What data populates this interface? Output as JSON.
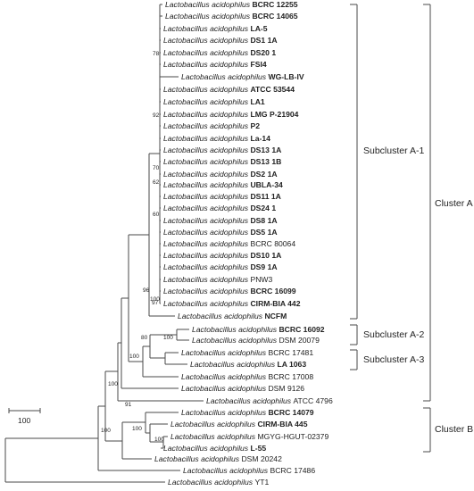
{
  "genus": "Lactobacillus",
  "species": "acidophilus",
  "strains": [
    {
      "strain": "BCRC 12255",
      "bold": true
    },
    {
      "strain": "BCRC 14065",
      "bold": true
    },
    {
      "strain": "LA-5",
      "bold": true
    },
    {
      "strain": "DS1 1A",
      "bold": true
    },
    {
      "strain": "DS20 1",
      "bold": true
    },
    {
      "strain": "FSI4",
      "bold": true
    },
    {
      "strain": "WG-LB-IV",
      "bold": true
    },
    {
      "strain": "ATCC 53544",
      "bold": true
    },
    {
      "strain": "LA1",
      "bold": true
    },
    {
      "strain": "LMG P-21904",
      "bold": true
    },
    {
      "strain": "P2",
      "bold": true
    },
    {
      "strain": "La-14",
      "bold": true
    },
    {
      "strain": "DS13 1A",
      "bold": true
    },
    {
      "strain": "DS13 1B",
      "bold": true
    },
    {
      "strain": "DS2 1A",
      "bold": true
    },
    {
      "strain": "UBLA-34",
      "bold": true
    },
    {
      "strain": "DS11 1A",
      "bold": true
    },
    {
      "strain": "DS24 1",
      "bold": true
    },
    {
      "strain": "DS8 1A",
      "bold": true
    },
    {
      "strain": "DS5 1A",
      "bold": true
    },
    {
      "strain": "BCRC 80064",
      "bold": false
    },
    {
      "strain": "DS10 1A",
      "bold": true
    },
    {
      "strain": "DS9 1A",
      "bold": true
    },
    {
      "strain": "PNW3",
      "bold": false
    },
    {
      "strain": "BCRC 16099",
      "bold": true
    },
    {
      "strain": "CIRM-BIA 442",
      "bold": true
    },
    {
      "strain": "NCFM",
      "bold": true
    },
    {
      "strain": "BCRC 16092",
      "bold": true
    },
    {
      "strain": "DSM 20079",
      "bold": false
    },
    {
      "strain": "BCRC 17481",
      "bold": false
    },
    {
      "strain": "LA 1063",
      "bold": true
    },
    {
      "strain": "BCRC 17008",
      "bold": false
    },
    {
      "strain": "DSM 9126",
      "bold": false
    },
    {
      "strain": "ATCC 4796",
      "bold": false
    },
    {
      "strain": "BCRC 14079",
      "bold": true
    },
    {
      "strain": "CIRM-BIA 445",
      "bold": true
    },
    {
      "strain": "MGYG-HGUT-02379",
      "bold": false
    },
    {
      "strain": "L-55",
      "bold": true
    },
    {
      "strain": "DSM 20242",
      "bold": false
    },
    {
      "strain": "BCRC 17486",
      "bold": false
    },
    {
      "strain": "YT1",
      "bold": false
    }
  ],
  "bootstrap": [
    "78",
    "92",
    "70",
    "62",
    "60",
    "100",
    "97",
    "96",
    "100",
    "80",
    "100",
    "100",
    "91",
    "100",
    "100",
    "100"
  ],
  "clusters": {
    "subcluster_a1": "Subcluster A-1",
    "subcluster_a2": "Subcluster A-2",
    "subcluster_a3": "Subcluster A-3",
    "cluster_a": "Cluster A",
    "cluster_b": "Cluster B"
  },
  "scale_bar": "100"
}
